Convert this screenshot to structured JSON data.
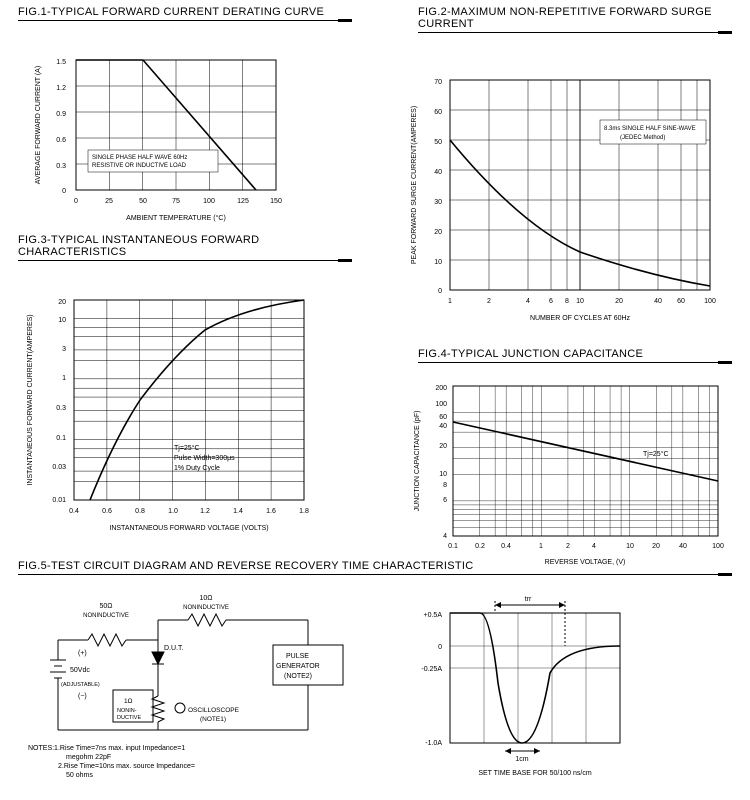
{
  "fig1": {
    "title": "FIG.1-TYPICAL FORWARD CURRENT DERATING CURVE",
    "xlabel": "AMBIENT TEMPERATURE (°C)",
    "ylabel": "AVERAGE FORWARD CURRENT (A)",
    "xlim": [
      0,
      150
    ],
    "xtick_step": 25,
    "ylim": [
      0,
      1.5
    ],
    "ytick_step": 0.3,
    "line": [
      [
        0,
        1.5
      ],
      [
        50,
        1.5
      ],
      [
        135,
        0
      ]
    ],
    "note": "SINGLE PHASE HALF WAVE 60Hz RESISTIVE OR INDUCTIVE LOAD",
    "grid_color": "#000",
    "bg": "#fff",
    "line_width": 1.4
  },
  "fig2": {
    "title": "FIG.2-MAXIMUM NON-REPETITIVE FORWARD SURGE CURRENT",
    "xlabel": "NUMBER OF CYCLES AT 60Hz",
    "ylabel": "PEAK FORWARD SURGE CURRENT(AMPERES)",
    "xscale": "log",
    "xlim": [
      1,
      100
    ],
    "xticks": [
      1,
      2,
      4,
      6,
      8,
      10,
      20,
      40,
      60,
      100
    ],
    "ylim": [
      0,
      70
    ],
    "ytick_step": 10,
    "note": "8.3ms SINGLE HALF SINE-WAVE (JEDEC Method)",
    "line": [
      [
        1,
        50
      ],
      [
        2,
        35
      ],
      [
        4,
        23
      ],
      [
        6,
        18
      ],
      [
        8,
        15
      ],
      [
        10,
        13
      ],
      [
        20,
        8
      ],
      [
        40,
        5
      ],
      [
        60,
        3.5
      ],
      [
        100,
        2
      ]
    ],
    "grid_color": "#000",
    "line_width": 1.4
  },
  "fig3": {
    "title": "FIG.3-TYPICAL INSTANTANEOUS FORWARD CHARACTERISTICS",
    "xlabel": "INSTANTANEOUS FORWARD VOLTAGE (VOLTS)",
    "ylabel": "INSTANTANEOUS FORWARD CURRENT(AMPERES)",
    "xlim": [
      0.4,
      1.8
    ],
    "xtick_step": 0.2,
    "yscale": "log",
    "yticks": [
      0.01,
      0.03,
      0.1,
      0.3,
      1,
      3,
      10,
      20
    ],
    "line": [
      [
        0.5,
        0.01
      ],
      [
        0.6,
        0.04
      ],
      [
        0.7,
        0.15
      ],
      [
        0.8,
        0.5
      ],
      [
        0.9,
        1.4
      ],
      [
        1.0,
        3
      ],
      [
        1.1,
        5.5
      ],
      [
        1.2,
        9
      ],
      [
        1.3,
        13
      ],
      [
        1.4,
        16
      ],
      [
        1.6,
        19
      ],
      [
        1.8,
        20
      ]
    ],
    "note": "Tj=25°C\nPulse Width=300μs\n1% Duty Cycle",
    "line_width": 1.4
  },
  "fig4": {
    "title": "FIG.4-TYPICAL JUNCTION CAPACITANCE",
    "xlabel": "REVERSE VOLTAGE, (V)",
    "ylabel": "JUNCTION CAPACITANCE (pF)",
    "xscale": "log",
    "xlim": [
      0.1,
      100
    ],
    "xticks": [
      0.1,
      0.2,
      0.4,
      1,
      2,
      4,
      10,
      20,
      40,
      100
    ],
    "yscale": "log",
    "yticks": [
      4,
      6,
      8,
      10,
      20,
      40,
      60,
      100,
      200
    ],
    "line": [
      [
        0.1,
        55
      ],
      [
        0.3,
        45
      ],
      [
        1,
        35
      ],
      [
        3,
        27
      ],
      [
        10,
        20
      ],
      [
        30,
        14
      ],
      [
        100,
        9
      ]
    ],
    "note": "Tj=25°C",
    "line_width": 1.4
  },
  "fig5": {
    "title": "FIG.5-TEST CIRCUIT DIAGRAM AND REVERSE RECOVERY TIME CHARACTERISTIC",
    "circuit": {
      "r1": "50Ω",
      "r1n": "NONINDUCTIVE",
      "r2": "10Ω",
      "r2n": "NONINDUCTIVE",
      "r3": "1Ω",
      "r3n": "NONIN-\nDUCTIVE",
      "src": "50Vdc",
      "srcn": "(ADJUSTABLE)",
      "plus": "(+)",
      "minus": "(−)",
      "dut": "D.U.T.",
      "pg": "PULSE\nGENERATOR\n(NOTE2)",
      "osc": "OSCILLOSCOPE\n(NOTE1)"
    },
    "notes": "NOTES:1.Rise Time=7ns max. input Impedance=1 megohm 22pF\n           2.Rise Time=10ns max. source Impedance= 50 ohms",
    "wave": {
      "ylabels": [
        "+0.5A",
        "0",
        "-0.25A",
        "-1.0A"
      ],
      "xlabel": "SET TIME BASE FOR 50/100 ns/cm",
      "trr": "trr",
      "cm": "1cm"
    }
  },
  "colors": {
    "fg": "#000000",
    "bg": "#ffffff"
  }
}
